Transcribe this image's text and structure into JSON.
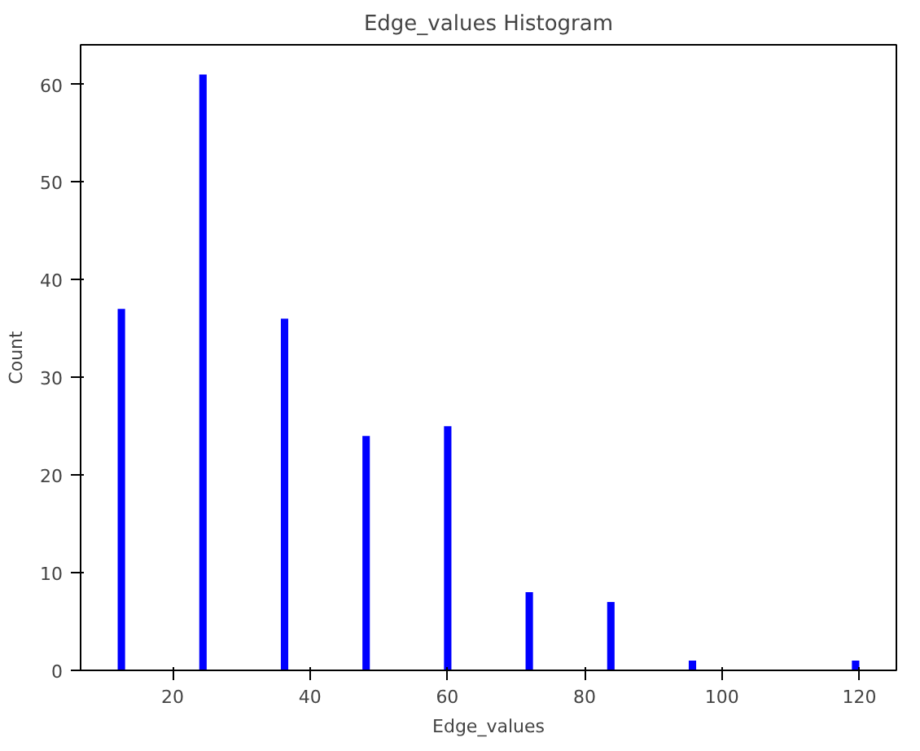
{
  "chart_data": {
    "type": "histogram",
    "title": "Edge_values Histogram",
    "xlabel": "Edge_values",
    "ylabel": "Count",
    "bins": [
      12,
      13.08,
      23.88,
      24.96,
      35.76,
      36.84,
      47.64,
      48.72,
      59.52,
      60.6,
      71.4,
      72.48,
      83.28,
      84.36,
      95.16,
      96.24,
      118.92,
      120
    ],
    "values": [
      37,
      0,
      61,
      0,
      36,
      0,
      24,
      0,
      25,
      0,
      8,
      0,
      7,
      0,
      1,
      0,
      1
    ],
    "color": "#0000ff",
    "xlim": [
      6.6,
      125.4
    ],
    "ylim": [
      0,
      64.05
    ],
    "xticks": [
      20,
      40,
      60,
      80,
      100,
      120
    ],
    "yticks": [
      0,
      10,
      20,
      30,
      40,
      50,
      60
    ],
    "grid": false
  }
}
